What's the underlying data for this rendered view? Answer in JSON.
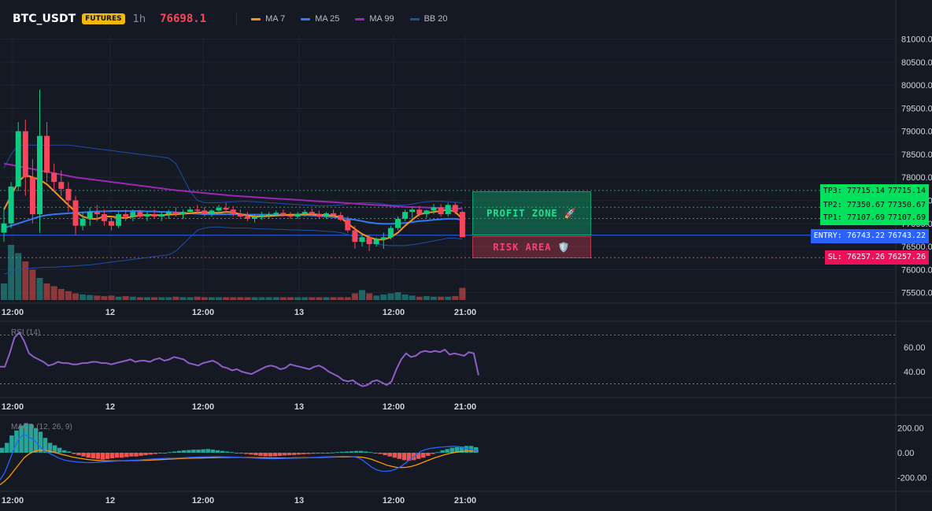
{
  "header": {
    "symbol": "BTC_USDT",
    "market_badge": "FUTURES",
    "timeframe": "1h",
    "last_price": "76698.1",
    "indicators": [
      {
        "label": "MA 7",
        "color": "#f7931a"
      },
      {
        "label": "MA 25",
        "color": "#3179f5"
      },
      {
        "label": "MA 99",
        "color": "#9c27b0"
      },
      {
        "label": "BB 20",
        "color": "#1e4ea8"
      }
    ]
  },
  "price_axis": {
    "ticks": [
      "81000.00",
      "80500.00",
      "80000.00",
      "79500.00",
      "79000.00",
      "78500.00",
      "78000.00",
      "77500.00",
      "77000.00",
      "76500.00",
      "76000.00",
      "75500.00"
    ]
  },
  "time_axis": {
    "labels": [
      "12:00",
      "12",
      "12:00",
      "13",
      "12:00",
      "21:00"
    ]
  },
  "levels": {
    "tp3": {
      "label": "TP3: 77715.14",
      "axis": "77715.14",
      "price": 77715.14,
      "color": "#0ecb81"
    },
    "tp2": {
      "label": "TP2: 77350.67",
      "axis": "77350.67",
      "price": 77350.67,
      "color": "#0ecb81"
    },
    "tp1": {
      "label": "TP1: 77107.69",
      "axis": "77107.69",
      "price": 77107.69,
      "color": "#0ecb81"
    },
    "entry": {
      "label": "ENTRY: 76743.22",
      "axis": "76743.22",
      "price": 76743.22,
      "color": "#2962ff"
    },
    "sl": {
      "label": "SL: 76257.26",
      "axis": "76257.26",
      "price": 76257.26,
      "color": "#f6465d"
    }
  },
  "zones": {
    "profit_label": "PROFIT ZONE 🚀",
    "risk_label": "RISK AREA 🛡️"
  },
  "rsi": {
    "title": "RSI (14)",
    "ticks": [
      "60.00",
      "40.00"
    ],
    "upper": 70,
    "lower": 30,
    "color": "#8e5ec8",
    "values": [
      44,
      44,
      55,
      68,
      72,
      65,
      55,
      52,
      50,
      48,
      45,
      46,
      48,
      47,
      47,
      46,
      46,
      47,
      47,
      48,
      48,
      47,
      47,
      46,
      47,
      48,
      49,
      50,
      48,
      49,
      49,
      48,
      50,
      51,
      49,
      50,
      52,
      51,
      50,
      47,
      46,
      45,
      47,
      48,
      49,
      47,
      44,
      43,
      41,
      42,
      40,
      39,
      38,
      40,
      42,
      44,
      45,
      44,
      42,
      43,
      46,
      45,
      44,
      43,
      42,
      44,
      45,
      43,
      40,
      38,
      36,
      33,
      32,
      33,
      30,
      28,
      29,
      32,
      33,
      31,
      29,
      32,
      42,
      50,
      55,
      52,
      53,
      56,
      57,
      56,
      57,
      56,
      58,
      54,
      55,
      54,
      53,
      56,
      55,
      37
    ],
    "pane_top": 410,
    "pane_bottom": 503
  },
  "macd": {
    "title": "MACD (12, 26, 9)",
    "ticks": [
      "200.00",
      "0.00",
      "-200.00"
    ],
    "bar_color_pos": "#26a69a",
    "bar_color_neg": "#ef5350",
    "line_color": "#2962ff",
    "signal_color": "#ff9800",
    "hist": [
      40,
      80,
      140,
      180,
      220,
      240,
      230,
      200,
      170,
      120,
      80,
      60,
      40,
      20,
      10,
      -10,
      -20,
      -30,
      -40,
      -45,
      -50,
      -55,
      -50,
      -45,
      -40,
      -40,
      -35,
      -30,
      -30,
      -25,
      -20,
      -15,
      -10,
      -5,
      0,
      5,
      10,
      15,
      20,
      22,
      25,
      25,
      28,
      30,
      25,
      20,
      15,
      10,
      5,
      0,
      -5,
      -10,
      -15,
      -20,
      -25,
      -28,
      -30,
      -28,
      -25,
      -22,
      -20,
      -18,
      -15,
      -12,
      -10,
      -8,
      -5,
      -2,
      0,
      2,
      5,
      8,
      10,
      12,
      15,
      15,
      10,
      5,
      0,
      -10,
      -20,
      -30,
      -40,
      -50,
      -60,
      -65,
      -60,
      -50,
      -40,
      -25,
      -10,
      5,
      20,
      30,
      40,
      45,
      50,
      55,
      55,
      45
    ],
    "macd_line": [
      -220,
      -160,
      -60,
      40,
      120,
      150,
      130,
      100,
      60,
      20,
      0,
      -20,
      -40,
      -55,
      -65,
      -70,
      -75,
      -78,
      -80,
      -80,
      -78,
      -75,
      -72,
      -70,
      -68,
      -66,
      -64,
      -62,
      -60,
      -58,
      -55,
      -52,
      -50,
      -48,
      -46,
      -45,
      -44,
      -42,
      -40,
      -38,
      -36,
      -35,
      -34,
      -33,
      -32,
      -32,
      -33,
      -34,
      -35,
      -36,
      -38,
      -40,
      -42,
      -44,
      -46,
      -47,
      -48,
      -48,
      -47,
      -46,
      -45,
      -44,
      -43,
      -42,
      -40,
      -38,
      -36,
      -34,
      -33,
      -32,
      -31,
      -30,
      -30,
      -32,
      -40,
      -60,
      -90,
      -120,
      -140,
      -150,
      -150,
      -145,
      -130,
      -110,
      -80,
      -50,
      -20,
      10,
      25,
      35,
      40,
      45,
      48,
      50,
      52,
      50,
      40,
      30,
      20,
      10
    ],
    "signal_line": [
      -260,
      -230,
      -190,
      -140,
      -90,
      -40,
      -10,
      10,
      20,
      20,
      15,
      5,
      -5,
      -15,
      -25,
      -35,
      -42,
      -48,
      -54,
      -58,
      -62,
      -64,
      -66,
      -66,
      -66,
      -65,
      -65,
      -64,
      -63,
      -62,
      -61,
      -60,
      -58,
      -56,
      -54,
      -52,
      -50,
      -48,
      -46,
      -45,
      -44,
      -43,
      -42,
      -41,
      -40,
      -39,
      -38,
      -38,
      -37,
      -37,
      -38,
      -38,
      -39,
      -40,
      -40,
      -41,
      -42,
      -42,
      -42,
      -42,
      -42,
      -41,
      -41,
      -40,
      -40,
      -39,
      -38,
      -37,
      -36,
      -35,
      -34,
      -34,
      -33,
      -33,
      -34,
      -37,
      -44,
      -55,
      -70,
      -85,
      -100,
      -110,
      -118,
      -120,
      -118,
      -112,
      -100,
      -86,
      -70,
      -55,
      -40,
      -28,
      -16,
      -6,
      2,
      8,
      12,
      15,
      16,
      15
    ],
    "pane_top": 528,
    "pane_bottom": 622
  },
  "chart_data": {
    "type": "candlestick",
    "price_min": 75270,
    "price_max": 81080,
    "candles": [
      [
        76800,
        77350,
        76600,
        77000
      ],
      [
        77000,
        77900,
        76900,
        77800
      ],
      [
        77800,
        79200,
        77700,
        79000
      ],
      [
        79000,
        79250,
        77600,
        78000
      ],
      [
        78000,
        78400,
        77000,
        77200
      ],
      [
        77200,
        79900,
        76800,
        78900
      ],
      [
        78900,
        79200,
        77900,
        78100
      ],
      [
        78100,
        78300,
        77700,
        77900
      ],
      [
        77900,
        78150,
        77600,
        77750
      ],
      [
        77750,
        77900,
        77250,
        77500
      ],
      [
        77500,
        77600,
        76750,
        76950
      ],
      [
        76950,
        77250,
        76850,
        77100
      ],
      [
        77100,
        77350,
        76950,
        77250
      ],
      [
        77250,
        77400,
        77050,
        77200
      ],
      [
        77200,
        77300,
        76950,
        77050
      ],
      [
        77050,
        77150,
        76850,
        76950
      ],
      [
        76950,
        77250,
        76900,
        77200
      ],
      [
        77200,
        77300,
        77050,
        77150
      ],
      [
        77150,
        77300,
        77050,
        77250
      ],
      [
        77250,
        77300,
        77100,
        77150
      ],
      [
        77150,
        77250,
        77050,
        77200
      ],
      [
        77200,
        77300,
        77100,
        77150
      ],
      [
        77150,
        77250,
        77050,
        77200
      ],
      [
        77200,
        77300,
        77100,
        77250
      ],
      [
        77250,
        77350,
        77150,
        77200
      ],
      [
        77200,
        77300,
        77100,
        77250
      ],
      [
        77250,
        77350,
        77200,
        77300
      ],
      [
        77300,
        77400,
        77200,
        77280
      ],
      [
        77280,
        77350,
        77150,
        77200
      ],
      [
        77200,
        77300,
        77150,
        77280
      ],
      [
        77280,
        77400,
        77220,
        77340
      ],
      [
        77340,
        77450,
        77250,
        77300
      ],
      [
        77300,
        77380,
        77150,
        77200
      ],
      [
        77200,
        77300,
        77120,
        77150
      ],
      [
        77150,
        77250,
        77050,
        77100
      ],
      [
        77100,
        77200,
        77020,
        77150
      ],
      [
        77150,
        77250,
        77080,
        77180
      ],
      [
        77180,
        77250,
        77100,
        77200
      ],
      [
        77200,
        77280,
        77150,
        77230
      ],
      [
        77230,
        77300,
        77150,
        77180
      ],
      [
        77180,
        77250,
        77100,
        77150
      ],
      [
        77150,
        77250,
        77100,
        77200
      ],
      [
        77200,
        77300,
        77150,
        77250
      ],
      [
        77250,
        77320,
        77170,
        77200
      ],
      [
        77200,
        77280,
        77100,
        77150
      ],
      [
        77150,
        77250,
        77100,
        77220
      ],
      [
        77220,
        77300,
        77120,
        77180
      ],
      [
        77180,
        77250,
        77050,
        77080
      ],
      [
        77080,
        77150,
        76800,
        76850
      ],
      [
        76850,
        76950,
        76450,
        76600
      ],
      [
        76600,
        76750,
        76500,
        76700
      ],
      [
        76700,
        76750,
        76400,
        76550
      ],
      [
        76550,
        76700,
        76500,
        76650
      ],
      [
        76650,
        76800,
        76450,
        76700
      ],
      [
        76700,
        76950,
        76650,
        76900
      ],
      [
        76900,
        77150,
        76850,
        77100
      ],
      [
        77100,
        77300,
        77050,
        77250
      ],
      [
        77250,
        77350,
        77100,
        77300
      ],
      [
        77300,
        77380,
        77150,
        77200
      ],
      [
        77200,
        77300,
        77120,
        77280
      ],
      [
        77280,
        77420,
        77200,
        77350
      ],
      [
        77350,
        77420,
        77150,
        77200
      ],
      [
        77200,
        77450,
        77150,
        77400
      ],
      [
        77400,
        77450,
        77200,
        77250
      ],
      [
        77250,
        77280,
        76700,
        76700
      ]
    ],
    "ma7": [
      77300,
      77600,
      77900,
      78050,
      78000,
      77950,
      77850,
      77700,
      77550,
      77400,
      77250,
      77150,
      77100,
      77100,
      77150,
      77150,
      77130,
      77120,
      77150,
      77170,
      77190,
      77180,
      77180,
      77190,
      77200,
      77210,
      77220,
      77240,
      77240,
      77230,
      77230,
      77250,
      77240,
      77200,
      77170,
      77150,
      77150,
      77160,
      77170,
      77180,
      77190,
      77190,
      77200,
      77200,
      77190,
      77180,
      77170,
      77130,
      77000,
      76880,
      76770,
      76700,
      76650,
      76650,
      76700,
      76800,
      76950,
      77080,
      77200,
      77230,
      77250,
      77270,
      77300,
      77250,
      77100
    ],
    "ma25": [
      76900,
      76950,
      77000,
      77050,
      77100,
      77150,
      77180,
      77200,
      77210,
      77220,
      77230,
      77240,
      77250,
      77260,
      77260,
      77270,
      77270,
      77270,
      77270,
      77270,
      77260,
      77260,
      77250,
      77250,
      77240,
      77230,
      77220,
      77210,
      77200,
      77200,
      77200,
      77200,
      77200,
      77200,
      77190,
      77190,
      77190,
      77190,
      77190,
      77180,
      77180,
      77180,
      77180,
      77170,
      77160,
      77150,
      77140,
      77120,
      77100,
      77080,
      77050,
      77020,
      77000,
      76990,
      76990,
      77000,
      77010,
      77030,
      77050,
      77060,
      77080,
      77090,
      77100,
      77100,
      77080
    ],
    "ma99": [
      78300,
      78270,
      78240,
      78210,
      78180,
      78150,
      78120,
      78090,
      78060,
      78030,
      78000,
      77980,
      77960,
      77940,
      77920,
      77900,
      77880,
      77860,
      77840,
      77820,
      77800,
      77780,
      77760,
      77740,
      77720,
      77705,
      77690,
      77675,
      77660,
      77645,
      77630,
      77615,
      77600,
      77590,
      77580,
      77570,
      77560,
      77550,
      77540,
      77530,
      77520,
      77510,
      77500,
      77490,
      77480,
      77470,
      77460,
      77450,
      77440,
      77430,
      77420,
      77410,
      77400,
      77390,
      77380,
      77370,
      77360,
      77355,
      77350,
      77345,
      77340,
      77335,
      77330,
      77325,
      77320
    ],
    "bb_upper": [
      78200,
      78500,
      78700,
      78700,
      78700,
      78700,
      78700,
      78700,
      78700,
      78700,
      78680,
      78660,
      78640,
      78620,
      78600,
      78580,
      78560,
      78540,
      78520,
      78500,
      78480,
      78460,
      78440,
      78420,
      78300,
      78000,
      77700,
      77500,
      77450,
      77450,
      77450,
      77460,
      77470,
      77480,
      77480,
      77470,
      77460,
      77450,
      77440,
      77430,
      77420,
      77410,
      77400,
      77390,
      77380,
      77380,
      77390,
      77400,
      77420,
      77440,
      77450,
      77450,
      77440,
      77420,
      77400,
      77400,
      77400,
      77420,
      77450,
      77470,
      77480,
      77480,
      77470,
      77460,
      77450
    ],
    "bb_lower": [
      75900,
      75950,
      76000,
      76020,
      76030,
      76040,
      76050,
      76050,
      76060,
      76070,
      76080,
      76090,
      76100,
      76120,
      76140,
      76160,
      76180,
      76200,
      76220,
      76240,
      76260,
      76280,
      76300,
      76320,
      76400,
      76550,
      76700,
      76850,
      76900,
      76920,
      76920,
      76910,
      76900,
      76900,
      76900,
      76890,
      76880,
      76880,
      76870,
      76870,
      76860,
      76860,
      76850,
      76850,
      76840,
      76830,
      76820,
      76800,
      76760,
      76700,
      76650,
      76600,
      76560,
      76530,
      76520,
      76520,
      76520,
      76540,
      76560,
      76590,
      76620,
      76650,
      76680,
      76680,
      76660
    ],
    "volume": [
      0.3,
      1.0,
      0.85,
      0.7,
      0.55,
      0.4,
      0.3,
      0.25,
      0.2,
      0.16,
      0.12,
      0.1,
      0.09,
      0.08,
      0.07,
      0.08,
      0.06,
      0.07,
      0.06,
      0.05,
      0.05,
      0.05,
      0.05,
      0.05,
      0.06,
      0.05,
      0.05,
      0.06,
      0.05,
      0.05,
      0.05,
      0.05,
      0.05,
      0.05,
      0.05,
      0.05,
      0.05,
      0.05,
      0.05,
      0.05,
      0.05,
      0.05,
      0.05,
      0.05,
      0.05,
      0.05,
      0.05,
      0.05,
      0.05,
      0.12,
      0.18,
      0.12,
      0.08,
      0.1,
      0.12,
      0.14,
      0.1,
      0.08,
      0.06,
      0.07,
      0.06,
      0.06,
      0.06,
      0.07,
      0.22
    ]
  }
}
